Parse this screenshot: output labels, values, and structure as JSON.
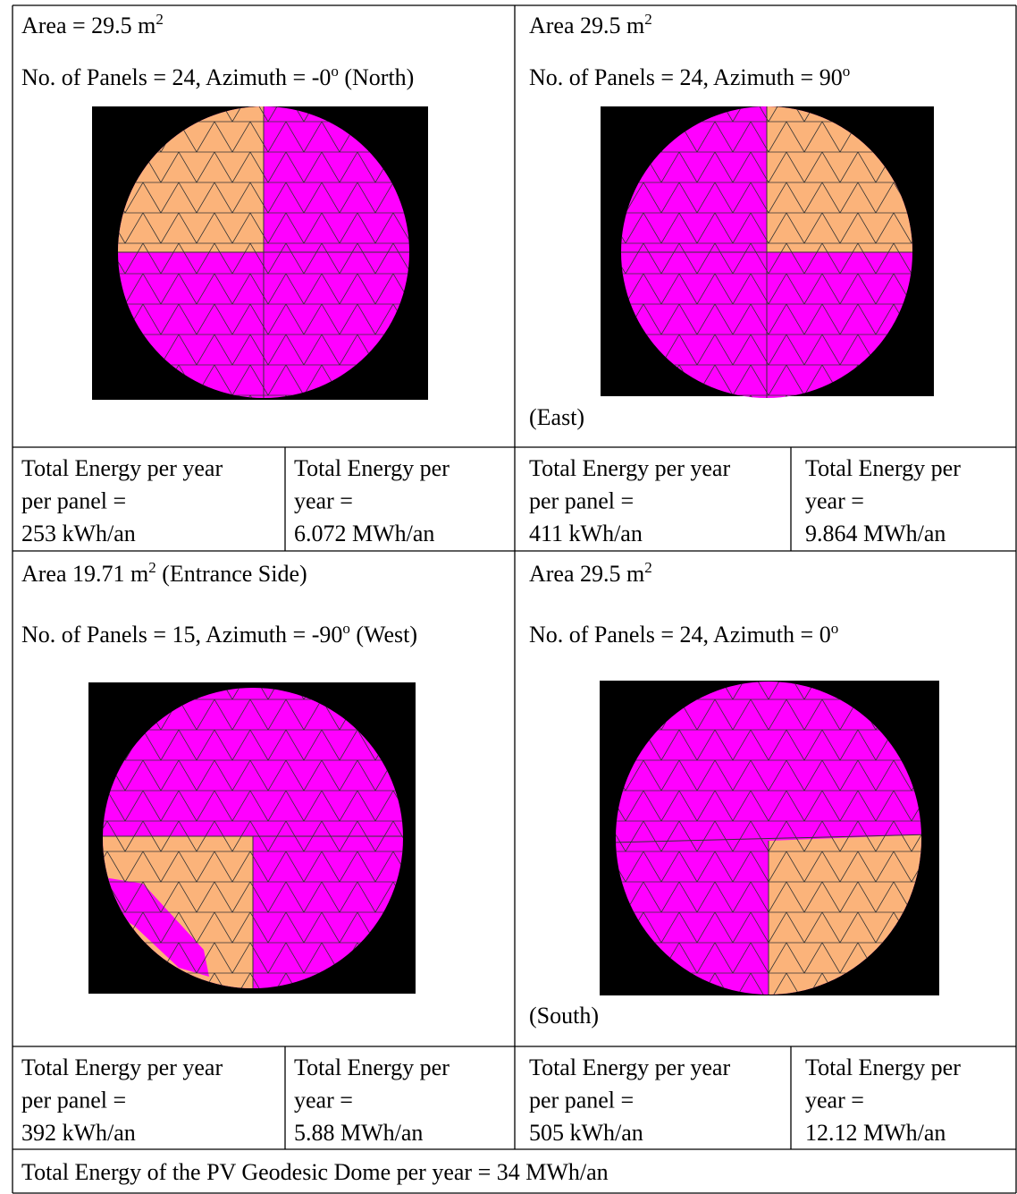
{
  "quadrants": [
    {
      "area": {
        "before": "Area = 29.5 m",
        "sup": "2"
      },
      "panels": {
        "before": "No. of Panels = 24, Azimuth = -0",
        "sup": "o",
        "after": " (North)"
      },
      "energy_per_panel": [
        "Total Energy per year",
        "per panel =",
        "253 kWh/an"
      ],
      "energy_total": [
        "Total Energy per",
        "year =",
        "6.072 MWh/an"
      ]
    },
    {
      "area": {
        "before": "Area 29.5 m",
        "sup": "2"
      },
      "panels": {
        "before": "No. of Panels = 24, Azimuth = 90",
        "sup": "o"
      },
      "direction": "(East)",
      "energy_per_panel": [
        "Total Energy per year",
        "per panel =",
        "411 kWh/an"
      ],
      "energy_total": [
        "Total Energy per",
        "year =",
        "9.864 MWh/an"
      ]
    },
    {
      "area": {
        "before": "Area 19.71 m",
        "sup": "2",
        "after": " (Entrance Side)"
      },
      "panels": {
        "before": "No. of Panels = 15, Azimuth = -90",
        "sup": "o",
        "after": " (West)"
      },
      "energy_per_panel": [
        "Total Energy per year",
        "per panel =",
        "392 kWh/an"
      ],
      "energy_total": [
        "Total Energy per",
        "year =",
        "5.88 MWh/an"
      ]
    },
    {
      "area": {
        "before": "Area 29.5 m",
        "sup": "2"
      },
      "panels": {
        "before": "No. of Panels = 24, Azimuth = 0",
        "sup": "o"
      },
      "direction": "(South)",
      "energy_per_panel": [
        "Total Energy per year",
        "per panel =",
        "505 kWh/an"
      ],
      "energy_total": [
        "Total Energy per",
        "year =",
        "12.12 MWh/an"
      ]
    }
  ],
  "footer": "Total Energy of the PV Geodesic Dome per year = 34 MWh/an"
}
